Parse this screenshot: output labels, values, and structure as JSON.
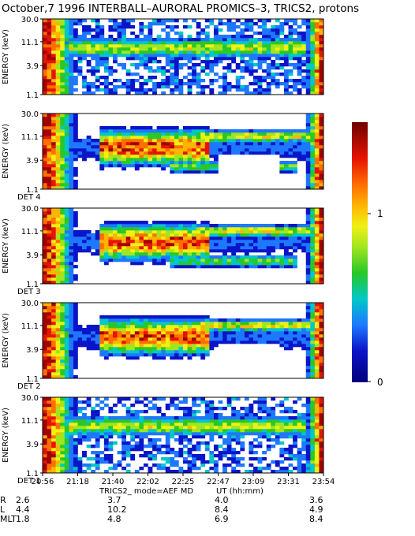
{
  "title": "October,7  1996   INTERBALL–AURORAL PROMICS–3, TRICS2, protons",
  "chart_data": {
    "type": "heatmap",
    "ylabel": "ENERGY (keV)",
    "ytick_labels": [
      "1.1",
      "3.9",
      "11.1",
      "30.0"
    ],
    "yticks_keV": [
      1.1,
      3.9,
      11.1,
      30.0
    ],
    "y_scale": "log",
    "ylim_keV": [
      1.1,
      30.0
    ],
    "xlabel": "UT (hh:mm)",
    "xtick_labels": [
      "20:56",
      "21:18",
      "21:40",
      "22:02",
      "22:25",
      "22:47",
      "23:09",
      "23:31",
      "23:54"
    ],
    "xlim": [
      "20:56",
      "23:54"
    ],
    "mode_label": "TRICS2_ mode=AEF  MD",
    "panels": [
      {
        "label": "",
        "slot": 0
      },
      {
        "label": "DET 4",
        "slot": 1
      },
      {
        "label": "DET 3",
        "slot": 2
      },
      {
        "label": "DET 2",
        "slot": 3
      },
      {
        "label": "DET 1",
        "slot": 4
      }
    ],
    "colorbar": {
      "tick_labels": [
        "1",
        "0"
      ],
      "ticks": [
        1,
        0
      ]
    },
    "ephemeris": {
      "rows": [
        {
          "name": "R",
          "values": [
            "2.6",
            "3.7",
            "4.0",
            "3.6"
          ]
        },
        {
          "name": "L",
          "values": [
            "4.4",
            "10.2",
            "8.4",
            "4.9"
          ]
        },
        {
          "name": "MLT",
          "values": [
            "1.8",
            "4.8",
            "6.9",
            "8.4"
          ]
        }
      ]
    }
  }
}
